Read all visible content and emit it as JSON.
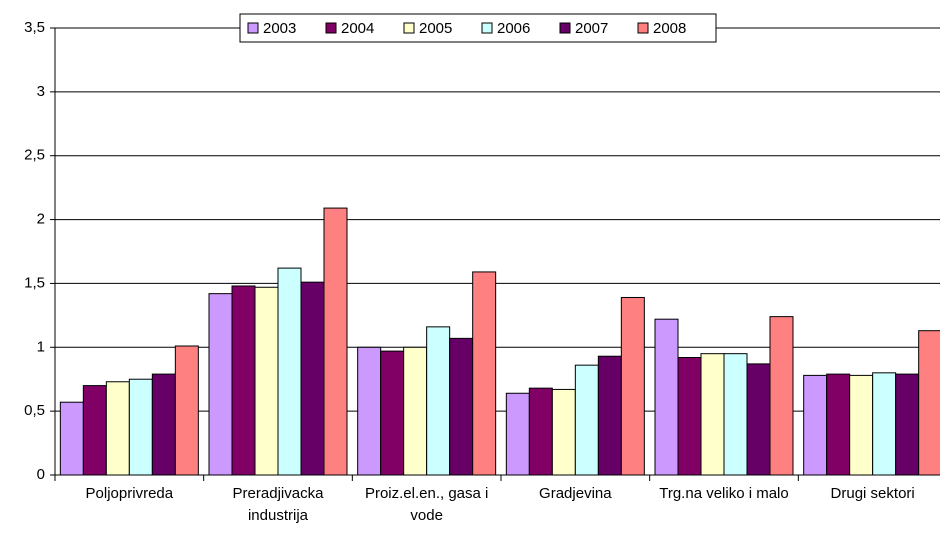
{
  "chart_data": {
    "type": "bar",
    "categories": [
      "Poljoprivreda",
      "Preradjivacka industrija",
      "Proiz.el.en., gasa i vode",
      "Gradjevina",
      "Trg.na veliko i malo",
      "Drugi sektori"
    ],
    "series": [
      {
        "name": "2003",
        "color": "#cc99ff",
        "values": [
          0.57,
          1.42,
          1.0,
          0.64,
          1.22,
          0.78
        ]
      },
      {
        "name": "2004",
        "color": "#800066",
        "values": [
          0.7,
          1.48,
          0.97,
          0.68,
          0.92,
          0.79
        ]
      },
      {
        "name": "2005",
        "color": "#ffffcc",
        "values": [
          0.73,
          1.47,
          1.0,
          0.67,
          0.95,
          0.78
        ]
      },
      {
        "name": "2006",
        "color": "#ccffff",
        "values": [
          0.75,
          1.62,
          1.16,
          0.86,
          0.95,
          0.8
        ]
      },
      {
        "name": "2007",
        "color": "#660066",
        "values": [
          0.79,
          1.51,
          1.07,
          0.93,
          0.87,
          0.79
        ]
      },
      {
        "name": "2008",
        "color": "#ff8080",
        "values": [
          1.01,
          2.09,
          1.59,
          1.39,
          1.24,
          1.13
        ]
      }
    ],
    "ylim": [
      0,
      3.5
    ],
    "yticks": [
      0,
      {
        "value": 0.5,
        "label": "0,5"
      },
      1,
      {
        "value": 1.5,
        "label": "1,5"
      },
      2,
      {
        "value": 2.5,
        "label": "2,5"
      },
      3,
      {
        "value": 3.5,
        "label": "3,5"
      }
    ],
    "grid": true,
    "legend": "top"
  }
}
